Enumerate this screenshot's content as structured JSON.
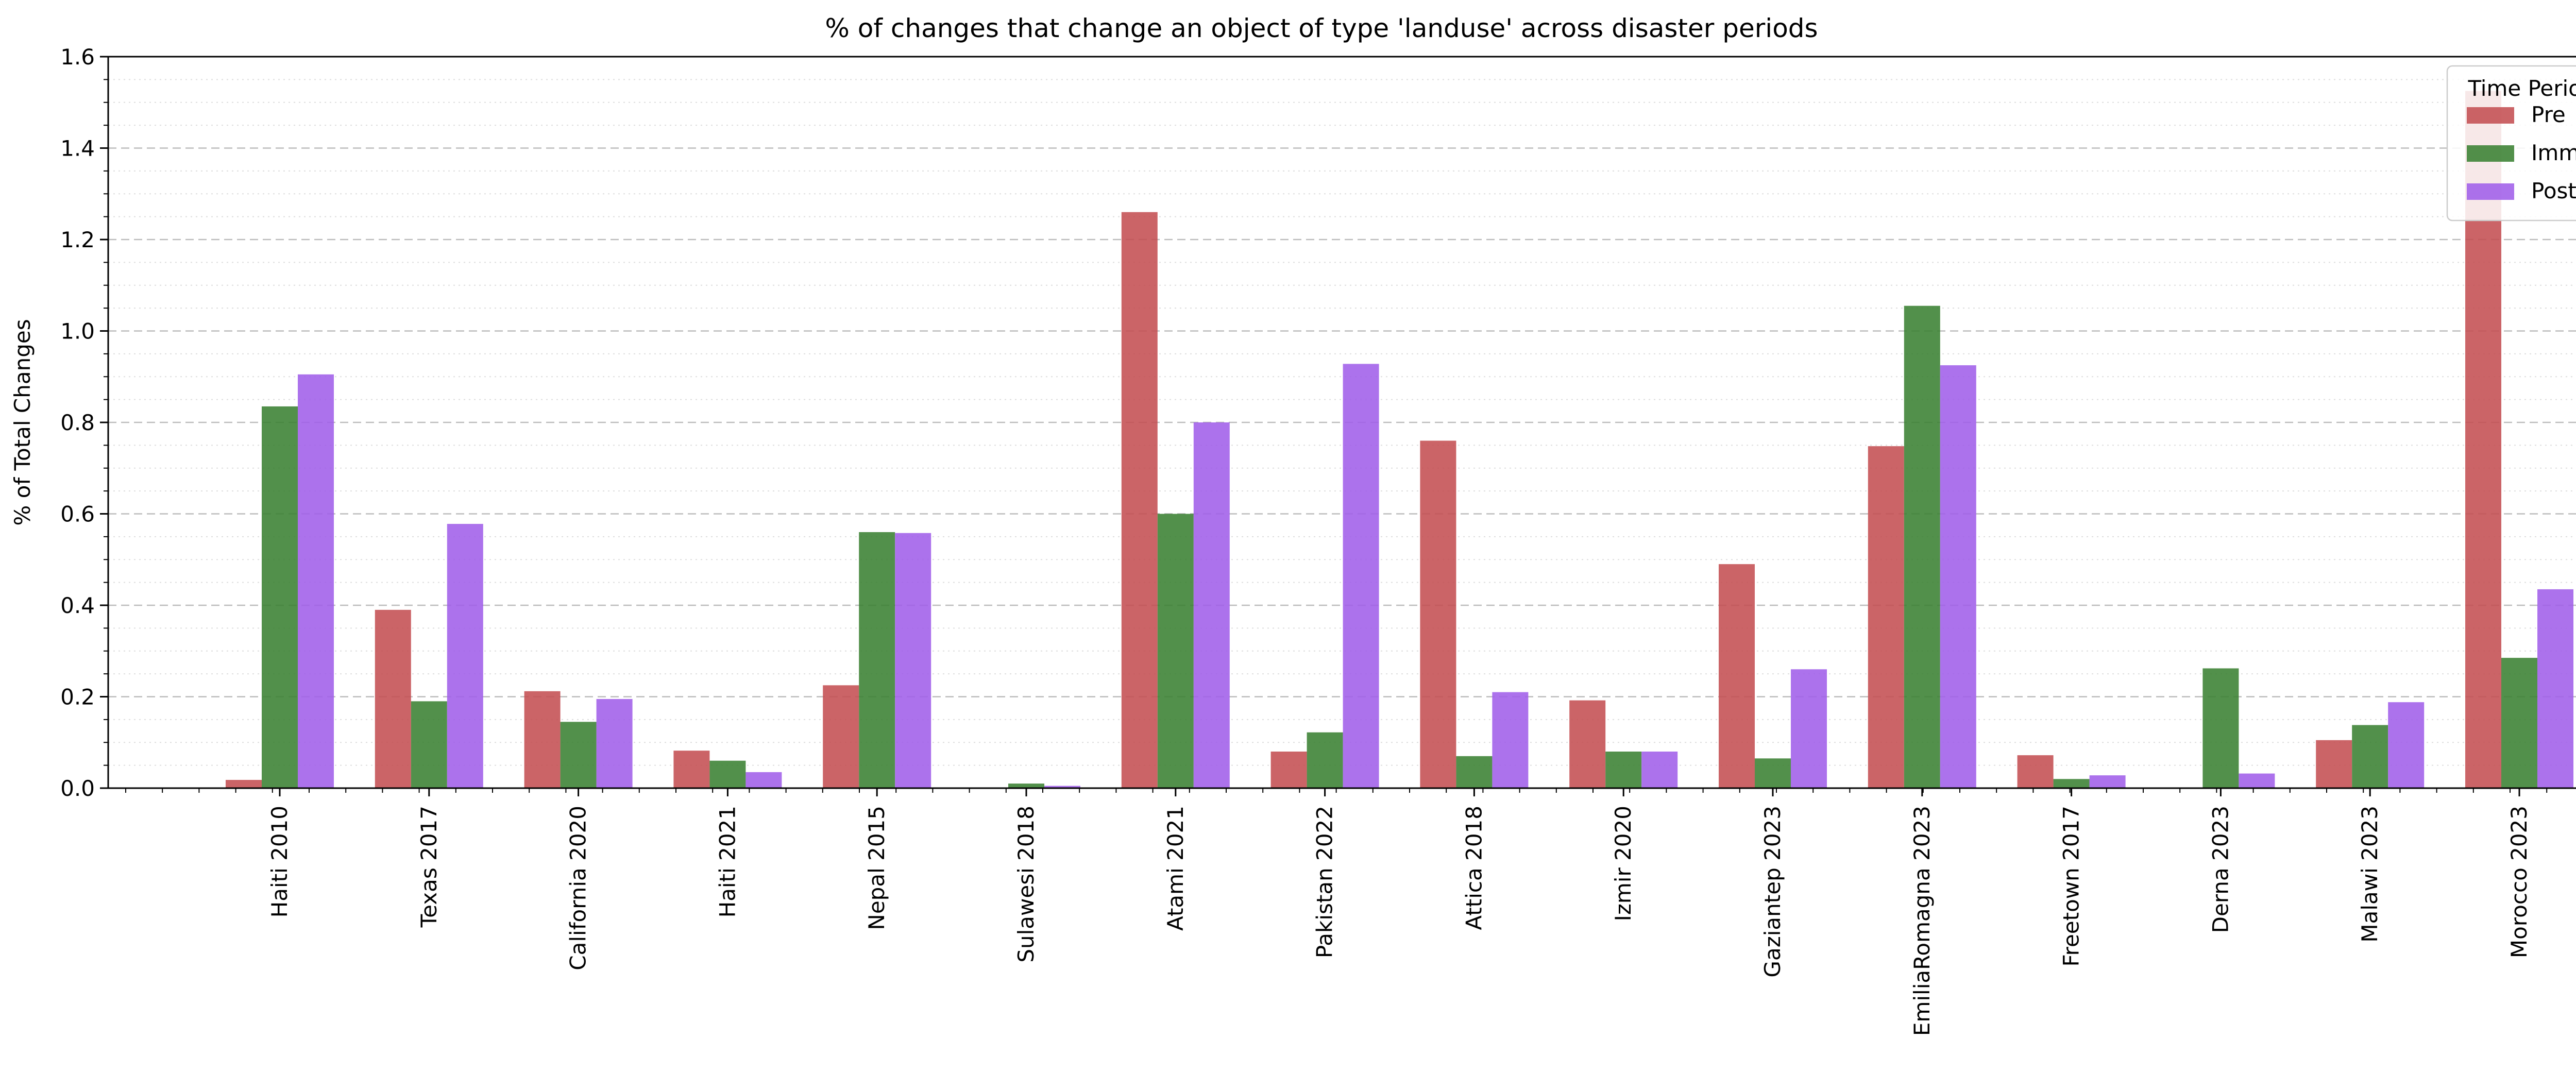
{
  "chart_data": {
    "type": "bar",
    "title": "% of changes that change an object of type 'landuse' across disaster periods",
    "xlabel": "",
    "ylabel": "% of Total Changes",
    "ylim": [
      0,
      1.6
    ],
    "yticks": [
      0.0,
      0.2,
      0.4,
      0.6,
      0.8,
      1.0,
      1.2,
      1.4,
      1.6
    ],
    "ytick_labels": [
      "0.0",
      "0.2",
      "0.4",
      "0.6",
      "0.8",
      "1.0",
      "1.2",
      "1.4",
      "1.6"
    ],
    "grid": {
      "major": "dashed",
      "minor": "dotted",
      "axis": "y"
    },
    "legend": {
      "title": "Time Period",
      "placement": "top-right"
    },
    "categories": [
      "Haiti 2010",
      "Texas 2017",
      "California 2020",
      "Haiti 2021",
      "Nepal 2015",
      "Sulawesi 2018",
      "Atami 2021",
      "Pakistan 2022",
      "Attica 2018",
      "Izmir 2020",
      "Gaziantep 2023",
      "EmiliaRomagna 2023",
      "Freetown 2017",
      "Derna 2023",
      "Malawi 2023",
      "Morocco 2023"
    ],
    "series": [
      {
        "name": "Pre",
        "color": "#c44e52",
        "values": [
          0.018,
          0.39,
          0.212,
          0.082,
          0.225,
          0.0,
          1.26,
          0.08,
          0.76,
          0.192,
          0.49,
          0.748,
          0.072,
          0.0,
          0.105,
          1.525
        ]
      },
      {
        "name": "Imm",
        "color": "#3a8132",
        "values": [
          0.835,
          0.19,
          0.145,
          0.06,
          0.56,
          0.01,
          0.6,
          0.122,
          0.07,
          0.08,
          0.065,
          1.055,
          0.02,
          0.262,
          0.138,
          0.285
        ]
      },
      {
        "name": "Post",
        "color": "#a15ee9",
        "values": [
          0.905,
          0.578,
          0.195,
          0.035,
          0.558,
          0.005,
          0.8,
          0.928,
          0.21,
          0.08,
          0.26,
          0.925,
          0.028,
          0.032,
          0.188,
          0.435
        ]
      }
    ]
  }
}
